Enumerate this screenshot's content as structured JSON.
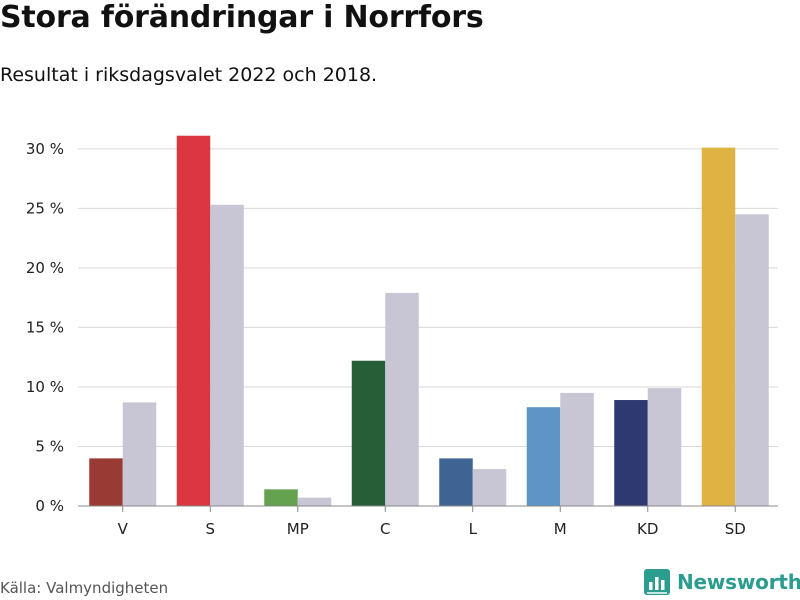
{
  "title": "Stora förändringar i Norrfors",
  "subtitle": "Resultat i riksdagsvalet 2022 och 2018.",
  "source": "Källa: Valmyndigheten",
  "brand": {
    "name": "Newsworthy",
    "icon": "newsworthy-logo-icon",
    "color": "#2a9d8f"
  },
  "chart_data": {
    "type": "bar",
    "title": "Stora förändringar i Norrfors",
    "subtitle": "Resultat i riksdagsvalet 2022 och 2018.",
    "xlabel": "",
    "ylabel": "",
    "ylim": [
      0,
      32
    ],
    "yticks": [
      0,
      5,
      10,
      15,
      20,
      25,
      30
    ],
    "ytick_labels": [
      "0 %",
      "5 %",
      "10 %",
      "15 %",
      "20 %",
      "25 %",
      "30 %"
    ],
    "grid": true,
    "legend": "none",
    "categories": [
      "V",
      "S",
      "MP",
      "C",
      "L",
      "M",
      "KD",
      "SD"
    ],
    "series": [
      {
        "values": [
          4.0,
          31.1,
          1.4,
          12.2,
          4.0,
          8.3,
          8.9,
          30.1
        ],
        "colors": [
          "#993a35",
          "#dc3641",
          "#65a250",
          "#275e37",
          "#3e6494",
          "#5d95c6",
          "#2e3871",
          "#deb243"
        ]
      },
      {
        "values": [
          8.7,
          25.3,
          0.7,
          17.9,
          3.1,
          9.5,
          9.9,
          24.5
        ],
        "color": "#c8c6d4"
      }
    ]
  }
}
